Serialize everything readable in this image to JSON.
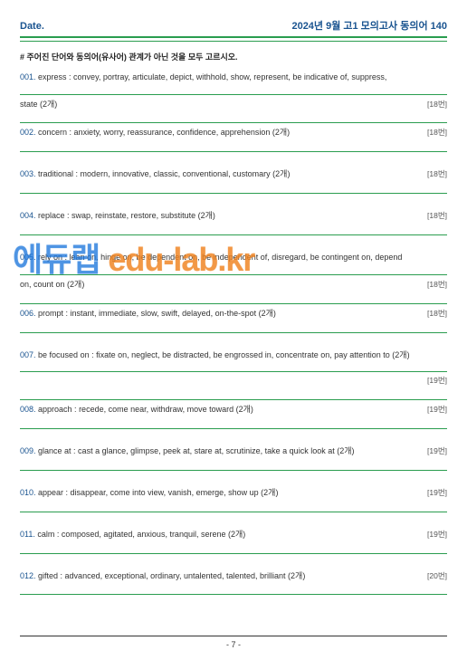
{
  "header": {
    "date_label": "Date.",
    "title": "2024년 9월 고1 모의고사  동의어 140"
  },
  "instruction": "# 주어진 단어와 동의어(유사어) 관계가 아닌 것을 모두 고르시오.",
  "watermark": {
    "part1": "에듀랩",
    "part2": " edu-lab.kr"
  },
  "footer": {
    "page": "- 7 -"
  },
  "questions": [
    {
      "num": "001.",
      "line1": " express : convey, portray, articulate, depict, withhold, show, represent, be indicative of, suppress,",
      "line2": "state (2개)",
      "ref": "[18번]",
      "two_line": true
    },
    {
      "num": "002.",
      "line1": " concern : anxiety, worry, reassurance, confidence, apprehension (2개)",
      "ref": "[18번]"
    },
    {
      "num": "003.",
      "line1": " traditional : modern, innovative, classic, conventional, customary (2개)",
      "ref": "[18번]"
    },
    {
      "num": "004.",
      "line1": " replace : swap, reinstate, restore, substitute (2개)",
      "ref": "[18번]"
    },
    {
      "num": "005.",
      "line1": " rely on : lean on, hinge on, be dependent on, be independent of, disregard, be contingent on, depend",
      "line2": "on, count on (2개)",
      "ref": "[18번]",
      "two_line": true
    },
    {
      "num": "006.",
      "line1": " prompt : instant, immediate, slow, swift, delayed, on-the-spot (2개)",
      "ref": "[18번]"
    },
    {
      "num": "007.",
      "line1": " be focused on : fixate on, neglect, be distracted, be engrossed in, concentrate on, pay attention to (2개)",
      "ref": "[19번]",
      "ref_below": true
    },
    {
      "num": "008.",
      "line1": " approach : recede, come near, withdraw, move toward (2개)",
      "ref": "[19번]"
    },
    {
      "num": "009.",
      "line1": " glance at : cast a glance, glimpse, peek at, stare at, scrutinize, take a quick look at (2개)",
      "ref": "[19번]"
    },
    {
      "num": "010.",
      "line1": " appear : disappear, come into view, vanish, emerge, show up (2개)",
      "ref": "[19번]"
    },
    {
      "num": "011.",
      "line1": " calm : composed, agitated, anxious, tranquil, serene (2개)",
      "ref": "[19번]"
    },
    {
      "num": "012.",
      "line1": " gifted : advanced, exceptional, ordinary, untalented, talented, brilliant (2개)",
      "ref": "[20번]"
    }
  ]
}
